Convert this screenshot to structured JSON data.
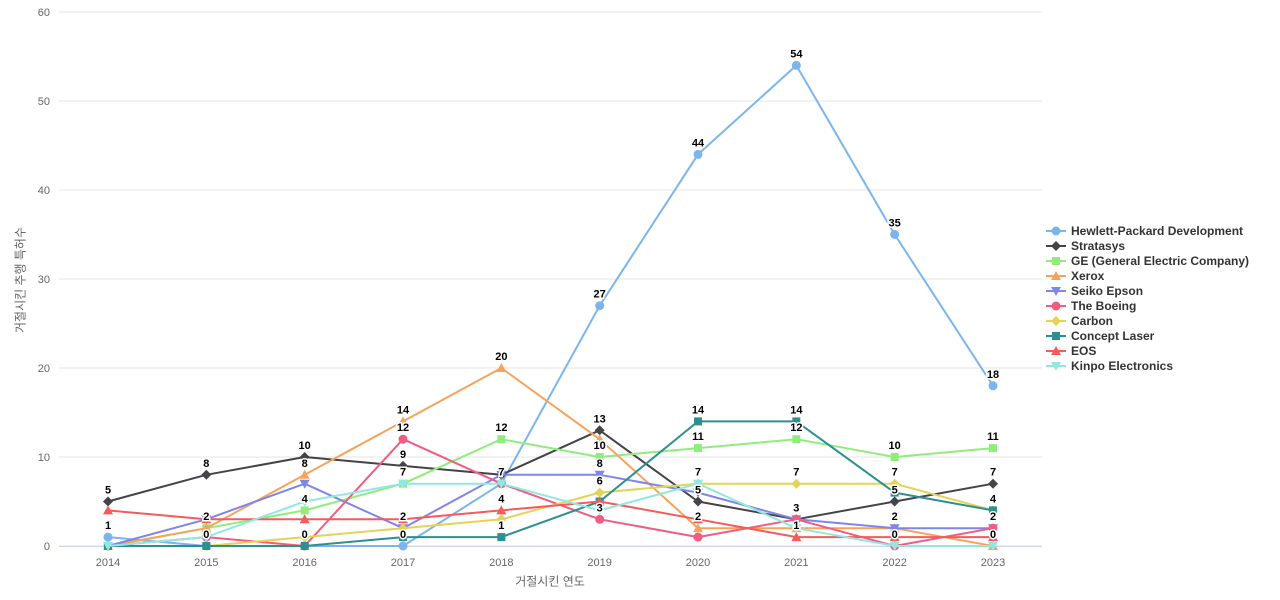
{
  "chart_data": {
    "type": "line",
    "title": "",
    "xlabel": "거절시킨 연도",
    "ylabel": "거절시킨 추행 특허수",
    "x": [
      2014,
      2015,
      2016,
      2017,
      2018,
      2019,
      2020,
      2021,
      2022,
      2023
    ],
    "ylim": [
      0,
      60
    ],
    "yticks": [
      0,
      10,
      20,
      30,
      40,
      50,
      60
    ],
    "grid": true,
    "legend_position": "right",
    "label_color": "#000000",
    "grid_color": "#e6e6e6",
    "axis_line_color": "#ccd6eb",
    "tick_color": "#666666",
    "series": [
      {
        "name": "Hewlett-Packard Development",
        "color": "#7cb5ec",
        "marker": "circle",
        "values": [
          1,
          0,
          0,
          0,
          7,
          27,
          44,
          54,
          35,
          18
        ],
        "labels_shown": [
          1,
          0,
          0,
          1,
          1,
          1,
          1,
          1,
          1,
          1
        ]
      },
      {
        "name": "Stratasys",
        "color": "#434348",
        "marker": "diamond",
        "values": [
          5,
          8,
          10,
          9,
          8,
          13,
          5,
          3,
          5,
          7
        ],
        "labels_shown": [
          1,
          1,
          1,
          1,
          0,
          1,
          1,
          0,
          1,
          1
        ]
      },
      {
        "name": "GE (General Electric Company)",
        "color": "#90ed7d",
        "marker": "square",
        "values": [
          0,
          2,
          4,
          7,
          12,
          10,
          11,
          12,
          10,
          11
        ],
        "labels_shown": [
          0,
          1,
          1,
          1,
          1,
          1,
          1,
          1,
          1,
          1
        ]
      },
      {
        "name": "Xerox",
        "color": "#f7a35c",
        "marker": "triangle",
        "values": [
          0,
          2,
          8,
          14,
          20,
          12,
          2,
          2,
          2,
          0
        ],
        "labels_shown": [
          0,
          0,
          1,
          1,
          1,
          0,
          1,
          0,
          1,
          1
        ]
      },
      {
        "name": "Seiko Epson",
        "color": "#8085e9",
        "marker": "triangle-down",
        "values": [
          0,
          3,
          7,
          2,
          8,
          8,
          6,
          3,
          2,
          2
        ],
        "labels_shown": [
          0,
          0,
          0,
          0,
          0,
          1,
          0,
          0,
          0,
          0
        ]
      },
      {
        "name": "The Boeing",
        "color": "#f15c80",
        "marker": "circle",
        "values": [
          0,
          1,
          0,
          12,
          7,
          3,
          1,
          3,
          0,
          2
        ],
        "labels_shown": [
          0,
          0,
          0,
          1,
          0,
          1,
          0,
          1,
          1,
          1
        ]
      },
      {
        "name": "Carbon",
        "color": "#e4d354",
        "marker": "diamond",
        "values": [
          0,
          0,
          1,
          2,
          3,
          6,
          7,
          7,
          7,
          4
        ],
        "labels_shown": [
          0,
          0,
          0,
          1,
          0,
          1,
          1,
          1,
          1,
          0
        ]
      },
      {
        "name": "Concept Laser",
        "color": "#2b908f",
        "marker": "square",
        "values": [
          0,
          0,
          0,
          1,
          1,
          5,
          14,
          14,
          6,
          4
        ],
        "labels_shown": [
          0,
          1,
          1,
          0,
          1,
          0,
          1,
          1,
          0,
          1
        ]
      },
      {
        "name": "EOS",
        "color": "#f45b5b",
        "marker": "triangle",
        "values": [
          4,
          3,
          3,
          3,
          4,
          5,
          3,
          1,
          1,
          1
        ],
        "labels_shown": [
          0,
          0,
          0,
          0,
          1,
          0,
          0,
          1,
          0,
          0
        ]
      },
      {
        "name": "Kinpo Electronics",
        "color": "#91e8e1",
        "marker": "triangle-down",
        "values": [
          0,
          1,
          5,
          7,
          7,
          4,
          7,
          2,
          0,
          0
        ],
        "labels_shown": [
          0,
          0,
          0,
          0,
          0,
          0,
          0,
          0,
          0,
          0
        ]
      }
    ]
  }
}
